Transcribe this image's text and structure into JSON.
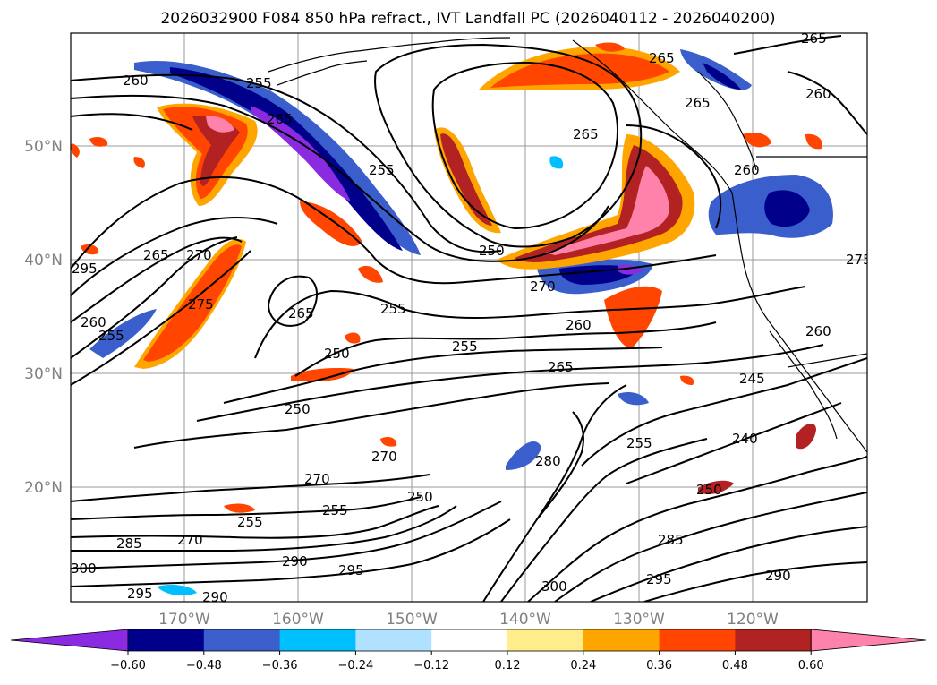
{
  "title": "2026032900 F084 850 hPa refract., IVT Landfall PC (2026040112 - 2026040200)",
  "map": {
    "lon_ticks": [
      "170°W",
      "160°W",
      "150°W",
      "140°W",
      "130°W",
      "120°W"
    ],
    "lat_ticks": [
      "50°N",
      "40°N",
      "30°N",
      "20°N"
    ],
    "contour_labels": [
      "260",
      "255",
      "265",
      "255",
      "265",
      "270",
      "275",
      "250",
      "255",
      "265",
      "250",
      "250",
      "270",
      "260",
      "265",
      "255",
      "265",
      "255",
      "270",
      "270",
      "255",
      "250",
      "255",
      "280",
      "285",
      "270",
      "290",
      "295",
      "295",
      "290",
      "300",
      "285",
      "295",
      "290",
      "240",
      "245",
      "250",
      "265",
      "260",
      "260",
      "275",
      "260",
      "265",
      "265",
      "295",
      "260",
      "255",
      "300"
    ]
  },
  "colorbar": {
    "tick_labels": [
      "−0.60",
      "−0.48",
      "−0.36",
      "−0.24",
      "−0.12",
      "0.12",
      "0.24",
      "0.36",
      "0.48",
      "0.60"
    ],
    "bin_colors": [
      "#8a2be2",
      "#00008b",
      "#3a5fcd",
      "#00bfff",
      "#b0e2ff",
      "#ffffff",
      "#ffec8b",
      "#ffa500",
      "#ff4500",
      "#b22222",
      "#ff82ab"
    ]
  }
}
